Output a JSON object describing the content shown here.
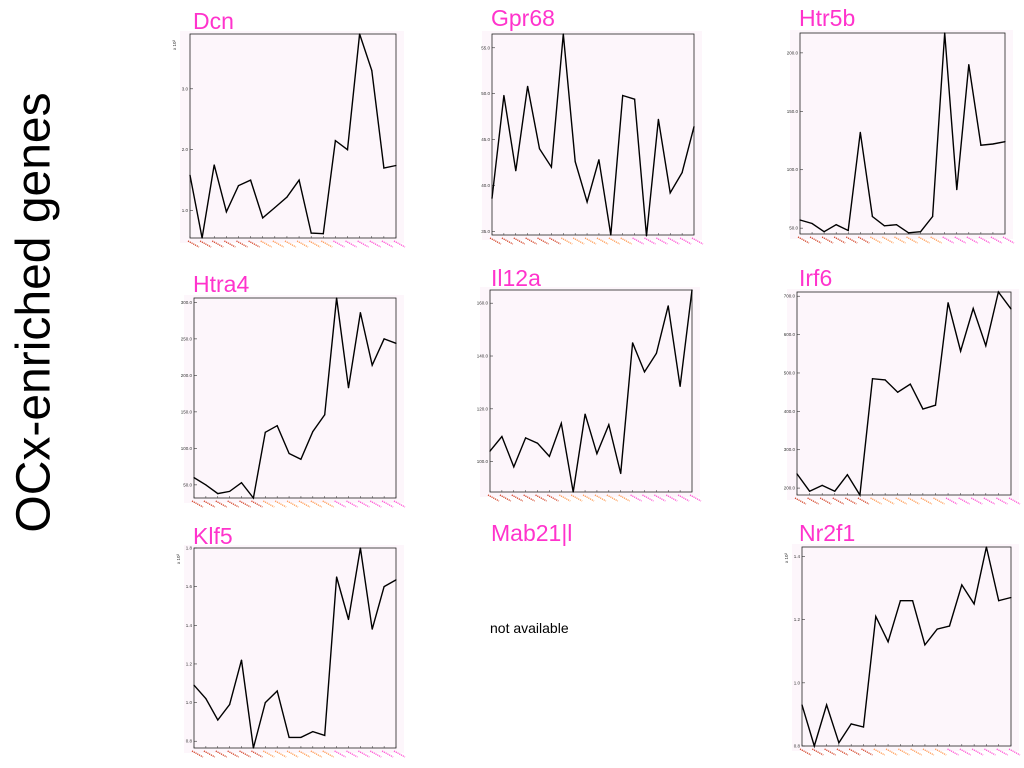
{
  "page_title": "OCx-enriched genes",
  "colors": {
    "title": "#ff33cc",
    "line": "#000000",
    "tick_orange": "#ff8833",
    "tick_pink": "#ff33cc",
    "tick_red": "#cc2200"
  },
  "not_available_text": "not available",
  "chart_data": [
    {
      "type": "line",
      "title": "Dcn",
      "multiplier": "x 10³",
      "yticks": [
        "1.0",
        "2.0",
        "3.0"
      ],
      "yticks_values": [
        1.0,
        2.0,
        3.0
      ],
      "ylim": [
        0.55,
        3.9
      ],
      "values": [
        1.58,
        0.55,
        1.75,
        0.98,
        1.41,
        1.5,
        0.88,
        1.05,
        1.22,
        1.5,
        0.63,
        0.62,
        2.15,
        2.0,
        3.9,
        3.3,
        1.7,
        1.74
      ]
    },
    {
      "type": "line",
      "title": "Gpr68",
      "multiplier": "",
      "yticks": [
        "35.0",
        "40.0",
        "45.0",
        "50.0",
        "55.0"
      ],
      "yticks_values": [
        35,
        40,
        45,
        50,
        55
      ],
      "ylim": [
        34.6,
        56.5
      ],
      "values": [
        38.6,
        49.8,
        41.6,
        50.8,
        44.0,
        42.0,
        56.5,
        42.6,
        38.2,
        42.8,
        34.6,
        49.8,
        49.4,
        34.5,
        47.2,
        39.2,
        41.4,
        46.4
      ]
    },
    {
      "type": "line",
      "title": "Htr5b",
      "multiplier": "",
      "yticks": [
        "50.0",
        "100.0",
        "150.0",
        "200.0"
      ],
      "yticks_values": [
        50,
        100,
        150,
        200
      ],
      "ylim": [
        45,
        217
      ],
      "values": [
        57,
        54,
        47,
        53,
        48,
        132,
        60,
        52,
        53,
        46,
        47,
        60,
        217,
        83,
        190,
        121,
        122,
        124
      ]
    },
    {
      "type": "line",
      "title": "Htra4",
      "multiplier": "",
      "yticks": [
        "50.0",
        "100.0",
        "150.0",
        "200.0",
        "250.0",
        "300.0"
      ],
      "yticks_values": [
        50,
        100,
        150,
        200,
        250,
        300
      ],
      "ylim": [
        32,
        306
      ],
      "values": [
        60,
        50,
        38,
        41,
        53,
        32,
        122,
        131,
        93,
        85,
        123,
        146,
        306,
        183,
        286,
        214,
        250,
        244
      ]
    },
    {
      "type": "line",
      "title": "Il12a",
      "multiplier": "",
      "yticks": [
        "100.0",
        "120.0",
        "140.0",
        "160.0"
      ],
      "yticks_values": [
        100,
        120,
        140,
        160
      ],
      "ylim": [
        88.5,
        165
      ],
      "values": [
        104,
        109.5,
        98,
        109,
        107,
        102,
        114.5,
        88.5,
        118,
        103,
        114,
        95.5,
        145,
        134,
        141,
        159,
        128.5,
        165
      ]
    },
    {
      "type": "line",
      "title": "Irf6",
      "multiplier": "",
      "yticks": [
        "200.0",
        "300.0",
        "400.0",
        "500.0",
        "600.0",
        "700.0"
      ],
      "yticks_values": [
        200,
        300,
        400,
        500,
        600,
        700
      ],
      "ylim": [
        182,
        711
      ],
      "values": [
        237,
        192,
        207,
        192,
        235,
        182,
        485,
        482,
        450,
        471,
        406,
        416,
        683,
        557,
        668,
        571,
        711,
        667
      ]
    },
    {
      "type": "line",
      "title": "Klf5",
      "multiplier": "x 10³",
      "yticks": [
        "0.8",
        "1.0",
        "1.2",
        "1.4",
        "1.6",
        "1.8"
      ],
      "yticks_values": [
        0.8,
        1.0,
        1.2,
        1.4,
        1.6,
        1.8
      ],
      "ylim": [
        0.765,
        1.8
      ],
      "values": [
        1.09,
        1.02,
        0.91,
        0.99,
        1.22,
        0.765,
        1.0,
        1.06,
        0.82,
        0.82,
        0.85,
        0.83,
        1.65,
        1.43,
        1.8,
        1.38,
        1.6,
        1.635
      ]
    },
    {
      "type": "none",
      "title": "Mab21|l",
      "values": []
    },
    {
      "type": "line",
      "title": "Nr2f1",
      "multiplier": "x 10³",
      "yticks": [
        "0.8",
        "1.0",
        "1.2",
        "1.4"
      ],
      "yticks_values": [
        0.8,
        1.0,
        1.2,
        1.4
      ],
      "ylim": [
        0.8,
        1.43
      ],
      "values": [
        0.93,
        0.8,
        0.93,
        0.81,
        0.87,
        0.86,
        1.21,
        1.13,
        1.26,
        1.26,
        1.12,
        1.17,
        1.18,
        1.31,
        1.25,
        1.43,
        1.26,
        1.27
      ]
    }
  ]
}
